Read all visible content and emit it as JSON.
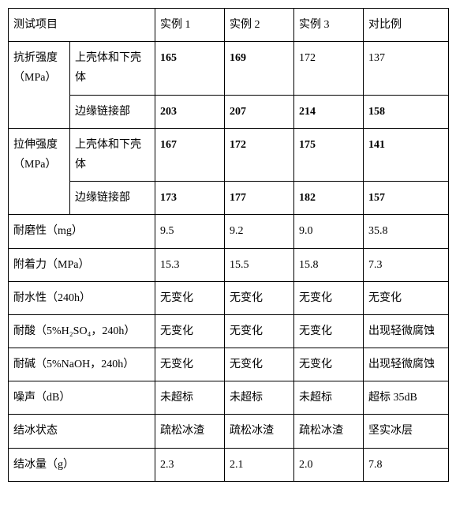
{
  "header": {
    "test_item": "测试项目",
    "ex1": "实例 1",
    "ex2": "实例 2",
    "ex3": "实例 3",
    "control": "对比例"
  },
  "rows": {
    "flexural": {
      "label_l1": "抗折强度",
      "label_l2": "（MPa）",
      "sub_a": "上壳体和下壳体",
      "a": {
        "ex1": "165",
        "ex2": "169",
        "ex3": "172",
        "ctrl": "137"
      },
      "sub_b": "边缘链接部",
      "b": {
        "ex1": "203",
        "ex2": "207",
        "ex3": "214",
        "ctrl": "158"
      }
    },
    "tensile": {
      "label_l1": "拉伸强度",
      "label_l2": "（MPa）",
      "sub_a": "上壳体和下壳体",
      "a": {
        "ex1": "167",
        "ex2": "172",
        "ex3": "175",
        "ctrl": "141"
      },
      "sub_b": "边缘链接部",
      "b": {
        "ex1": "173",
        "ex2": "177",
        "ex3": "182",
        "ctrl": "157"
      }
    },
    "abrasion": {
      "label": "耐磨性（mg）",
      "ex1": "9.5",
      "ex2": "9.2",
      "ex3": "9.0",
      "ctrl": "35.8"
    },
    "adhesion": {
      "label": "附着力（MPa）",
      "ex1": "15.3",
      "ex2": "15.5",
      "ex3": "15.8",
      "ctrl": "7.3"
    },
    "water": {
      "label": "耐水性（240h）",
      "ex1": "无变化",
      "ex2": "无变化",
      "ex3": "无变化",
      "ctrl": "无变化"
    },
    "acid": {
      "label": "耐酸（5%H₂SO₄，240h）",
      "ex1": "无变化",
      "ex2": "无变化",
      "ex3": "无变化",
      "ctrl": "出现轻微腐蚀"
    },
    "alkali": {
      "label": "耐碱（5%NaOH，240h）",
      "ex1": "无变化",
      "ex2": "无变化",
      "ex3": "无变化",
      "ctrl": "出现轻微腐蚀"
    },
    "noise": {
      "label": "噪声（dB）",
      "ex1": "未超标",
      "ex2": "未超标",
      "ex3": "未超标",
      "ctrl": "超标 35dB"
    },
    "ice_state": {
      "label": "结冰状态",
      "ex1": "疏松冰渣",
      "ex2": "疏松冰渣",
      "ex3": "疏松冰渣",
      "ctrl": "坚实冰层"
    },
    "ice_amount": {
      "label": "结冰量（g）",
      "ex1": "2.3",
      "ex2": "2.1",
      "ex3": "2.0",
      "ctrl": "7.8"
    }
  }
}
